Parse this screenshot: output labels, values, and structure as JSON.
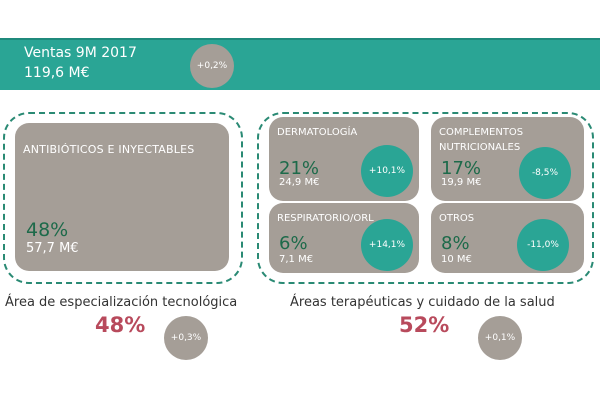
{
  "banner": {
    "title": "Ventas 9M 2017",
    "total": "119,6 M€",
    "change": "+0,2%"
  },
  "tecnologica": {
    "tile": {
      "title": "ANTIBIÓTICOS E INYECTABLES",
      "pct": "48%",
      "value": "57,7 M€"
    },
    "caption": "Área de especialización tecnológica",
    "pct": "48%",
    "change": "+0,3%"
  },
  "terapeuticas": {
    "tiles": [
      {
        "title": "DERMATOLOGÍA",
        "pct": "21%",
        "value": "24,9 M€",
        "change": "+10,1%"
      },
      {
        "title": "COMPLEMENTOS NUTRICIONALES",
        "pct": "17%",
        "value": "19,9 M€",
        "change": "-8,5%"
      },
      {
        "title": "RESPIRATORIO/ORL",
        "pct": "6%",
        "value": "7,1 M€",
        "change": "+14,1%"
      },
      {
        "title": "OTROS",
        "pct": "8%",
        "value": "10 M€",
        "change": "-11,0%"
      }
    ],
    "caption": "Áreas terapéuticas y cuidado de la salud",
    "pct": "52%",
    "change": "+0,1%"
  },
  "colors": {
    "teal": "#2aa595",
    "tile_grey": "#a59e97",
    "pct_green": "#1d6a4a",
    "pct_red": "#b84a5c",
    "dashed_border": "#2a8a74"
  }
}
